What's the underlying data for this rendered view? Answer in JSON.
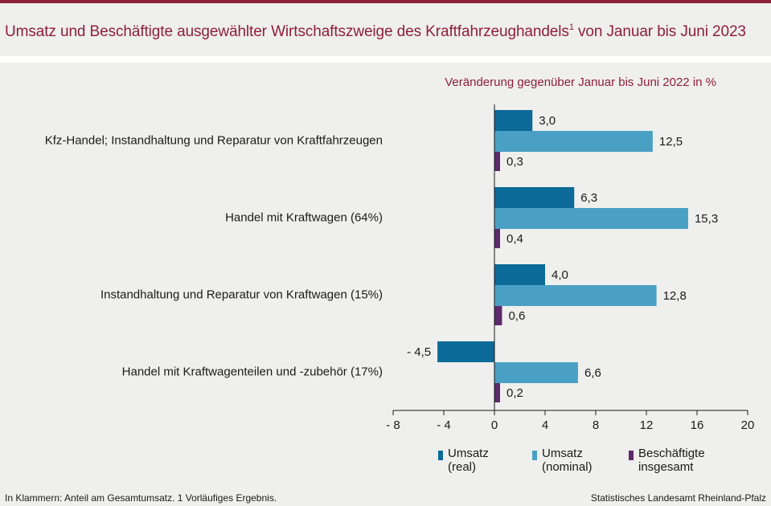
{
  "title": {
    "text": "Umsatz und Beschäftigte ausgewählter Wirtschaftszweige des Kraftfahrzeughandels",
    "sup": "1",
    "suffix": " von Januar bis Juni 2023"
  },
  "footer": {
    "left": "In Klammern: Anteil am Gesamtumsatz. 1 Vorläufiges Ergebnis.",
    "right": "Statistisches Landesamt Rheinland-Pfalz"
  },
  "colors": {
    "title": "#8e1f3a",
    "umsatz_real": "#0b6a97",
    "umsatz_nominal": "#4aa0c4",
    "beschaeftigte": "#5e2a6b"
  },
  "chart_data": {
    "type": "bar",
    "orientation": "horizontal",
    "subtitle": "Veränderung gegenüber Januar bis Juni 2022 in %",
    "categories": [
      "Kfz-Handel; Instandhaltung und Reparatur von Kraftfahrzeugen",
      "Handel mit Kraftwagen (64%)",
      "Instandhaltung und Reparatur von Kraftwagen (15%)",
      "Handel mit Kraftwagenteilen und -zubehör (17%)"
    ],
    "series": [
      {
        "name": "Umsatz\n(real)",
        "values": [
          3.0,
          6.3,
          4.0,
          -4.5
        ],
        "labels": [
          "3,0",
          "6,3",
          "4,0",
          "- 4,5"
        ]
      },
      {
        "name": "Umsatz\n(nominal)",
        "values": [
          12.5,
          15.3,
          12.8,
          6.6
        ],
        "labels": [
          "12,5",
          "15,3",
          "12,8",
          "6,6"
        ]
      },
      {
        "name": "Beschäftigte\ninsgesamt",
        "values": [
          0.3,
          0.4,
          0.6,
          0.2
        ],
        "labels": [
          "0,3",
          "0,4",
          "0,6",
          "0,2"
        ]
      }
    ],
    "xlim": [
      -8,
      20
    ],
    "xticks": [
      -8,
      -4,
      0,
      4,
      8,
      12,
      16,
      20
    ],
    "xtick_labels": [
      "- 8",
      "- 4",
      "0",
      "4",
      "8",
      "12",
      "16",
      "20"
    ],
    "grid": false,
    "legend_position": "bottom"
  }
}
